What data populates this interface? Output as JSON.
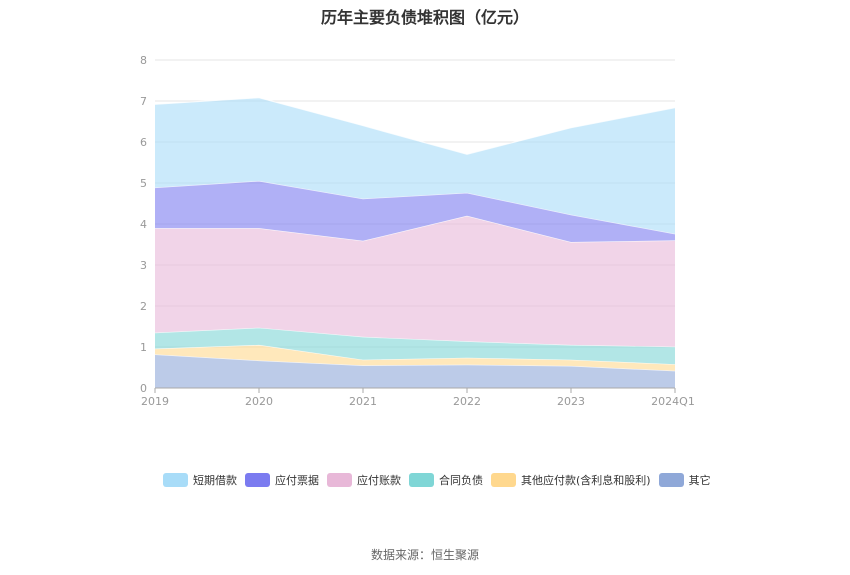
{
  "page": {
    "title": "历年主要负债堆积图（亿元）",
    "source": "数据来源：恒生聚源"
  },
  "chart_data": {
    "type": "area",
    "stacked": true,
    "title": "历年主要负债堆积图（亿元）",
    "categories": [
      "2019",
      "2020",
      "2021",
      "2022",
      "2023",
      "2024Q1"
    ],
    "y_ticks": [
      "0",
      "1",
      "2",
      "3",
      "4",
      "5",
      "6",
      "7",
      "8"
    ],
    "ylim": [
      0,
      8
    ],
    "grid": true,
    "legend_position": "bottom",
    "series": [
      {
        "name": "其它",
        "color": "#8FA8D8",
        "values": [
          0.82,
          0.67,
          0.55,
          0.57,
          0.54,
          0.42
        ]
      },
      {
        "name": "其他应付款(含利息和股利)",
        "color": "#FFD88E",
        "values": [
          0.14,
          0.38,
          0.14,
          0.17,
          0.15,
          0.16
        ]
      },
      {
        "name": "合同负债",
        "color": "#7FD6D6",
        "values": [
          0.39,
          0.42,
          0.56,
          0.4,
          0.36,
          0.43
        ]
      },
      {
        "name": "应付账款",
        "color": "#E8B8D8",
        "values": [
          2.55,
          2.43,
          2.34,
          3.06,
          2.51,
          2.59
        ]
      },
      {
        "name": "应付票据",
        "color": "#7B7BF0",
        "values": [
          0.99,
          1.15,
          1.03,
          0.56,
          0.67,
          0.16
        ]
      },
      {
        "name": "短期借款",
        "color": "#A8DCF8",
        "values": [
          2.03,
          2.03,
          1.78,
          0.94,
          2.12,
          3.08
        ]
      }
    ],
    "legend_order": [
      "短期借款",
      "应付票据",
      "应付账款",
      "合同负债",
      "其他应付款(含利息和股利)",
      "其它"
    ]
  }
}
